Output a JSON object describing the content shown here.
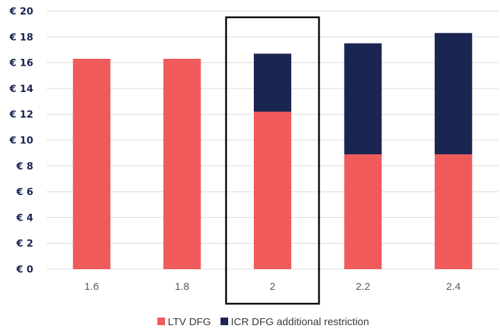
{
  "chart_data": {
    "type": "bar",
    "stacked": true,
    "categories": [
      "1.6",
      "1.8",
      "2",
      "2.2",
      "2.4"
    ],
    "series": [
      {
        "name": "LTV DFG",
        "values": [
          16.3,
          16.3,
          12.2,
          8.9,
          8.9
        ],
        "color": "#f05a5b"
      },
      {
        "name": "ICR DFG additional restriction",
        "values": [
          0,
          0,
          4.5,
          8.6,
          9.4
        ],
        "color": "#1b2552"
      }
    ],
    "yticks": [
      "€ 0",
      "€ 2",
      "€ 4",
      "€ 6",
      "€ 8",
      "€ 10",
      "€ 12",
      "€ 14",
      "€ 16",
      "€ 18",
      "€ 20"
    ],
    "ylim": [
      0,
      20
    ],
    "grid": true,
    "highlighted_category": "2",
    "legend_position": "bottom"
  }
}
